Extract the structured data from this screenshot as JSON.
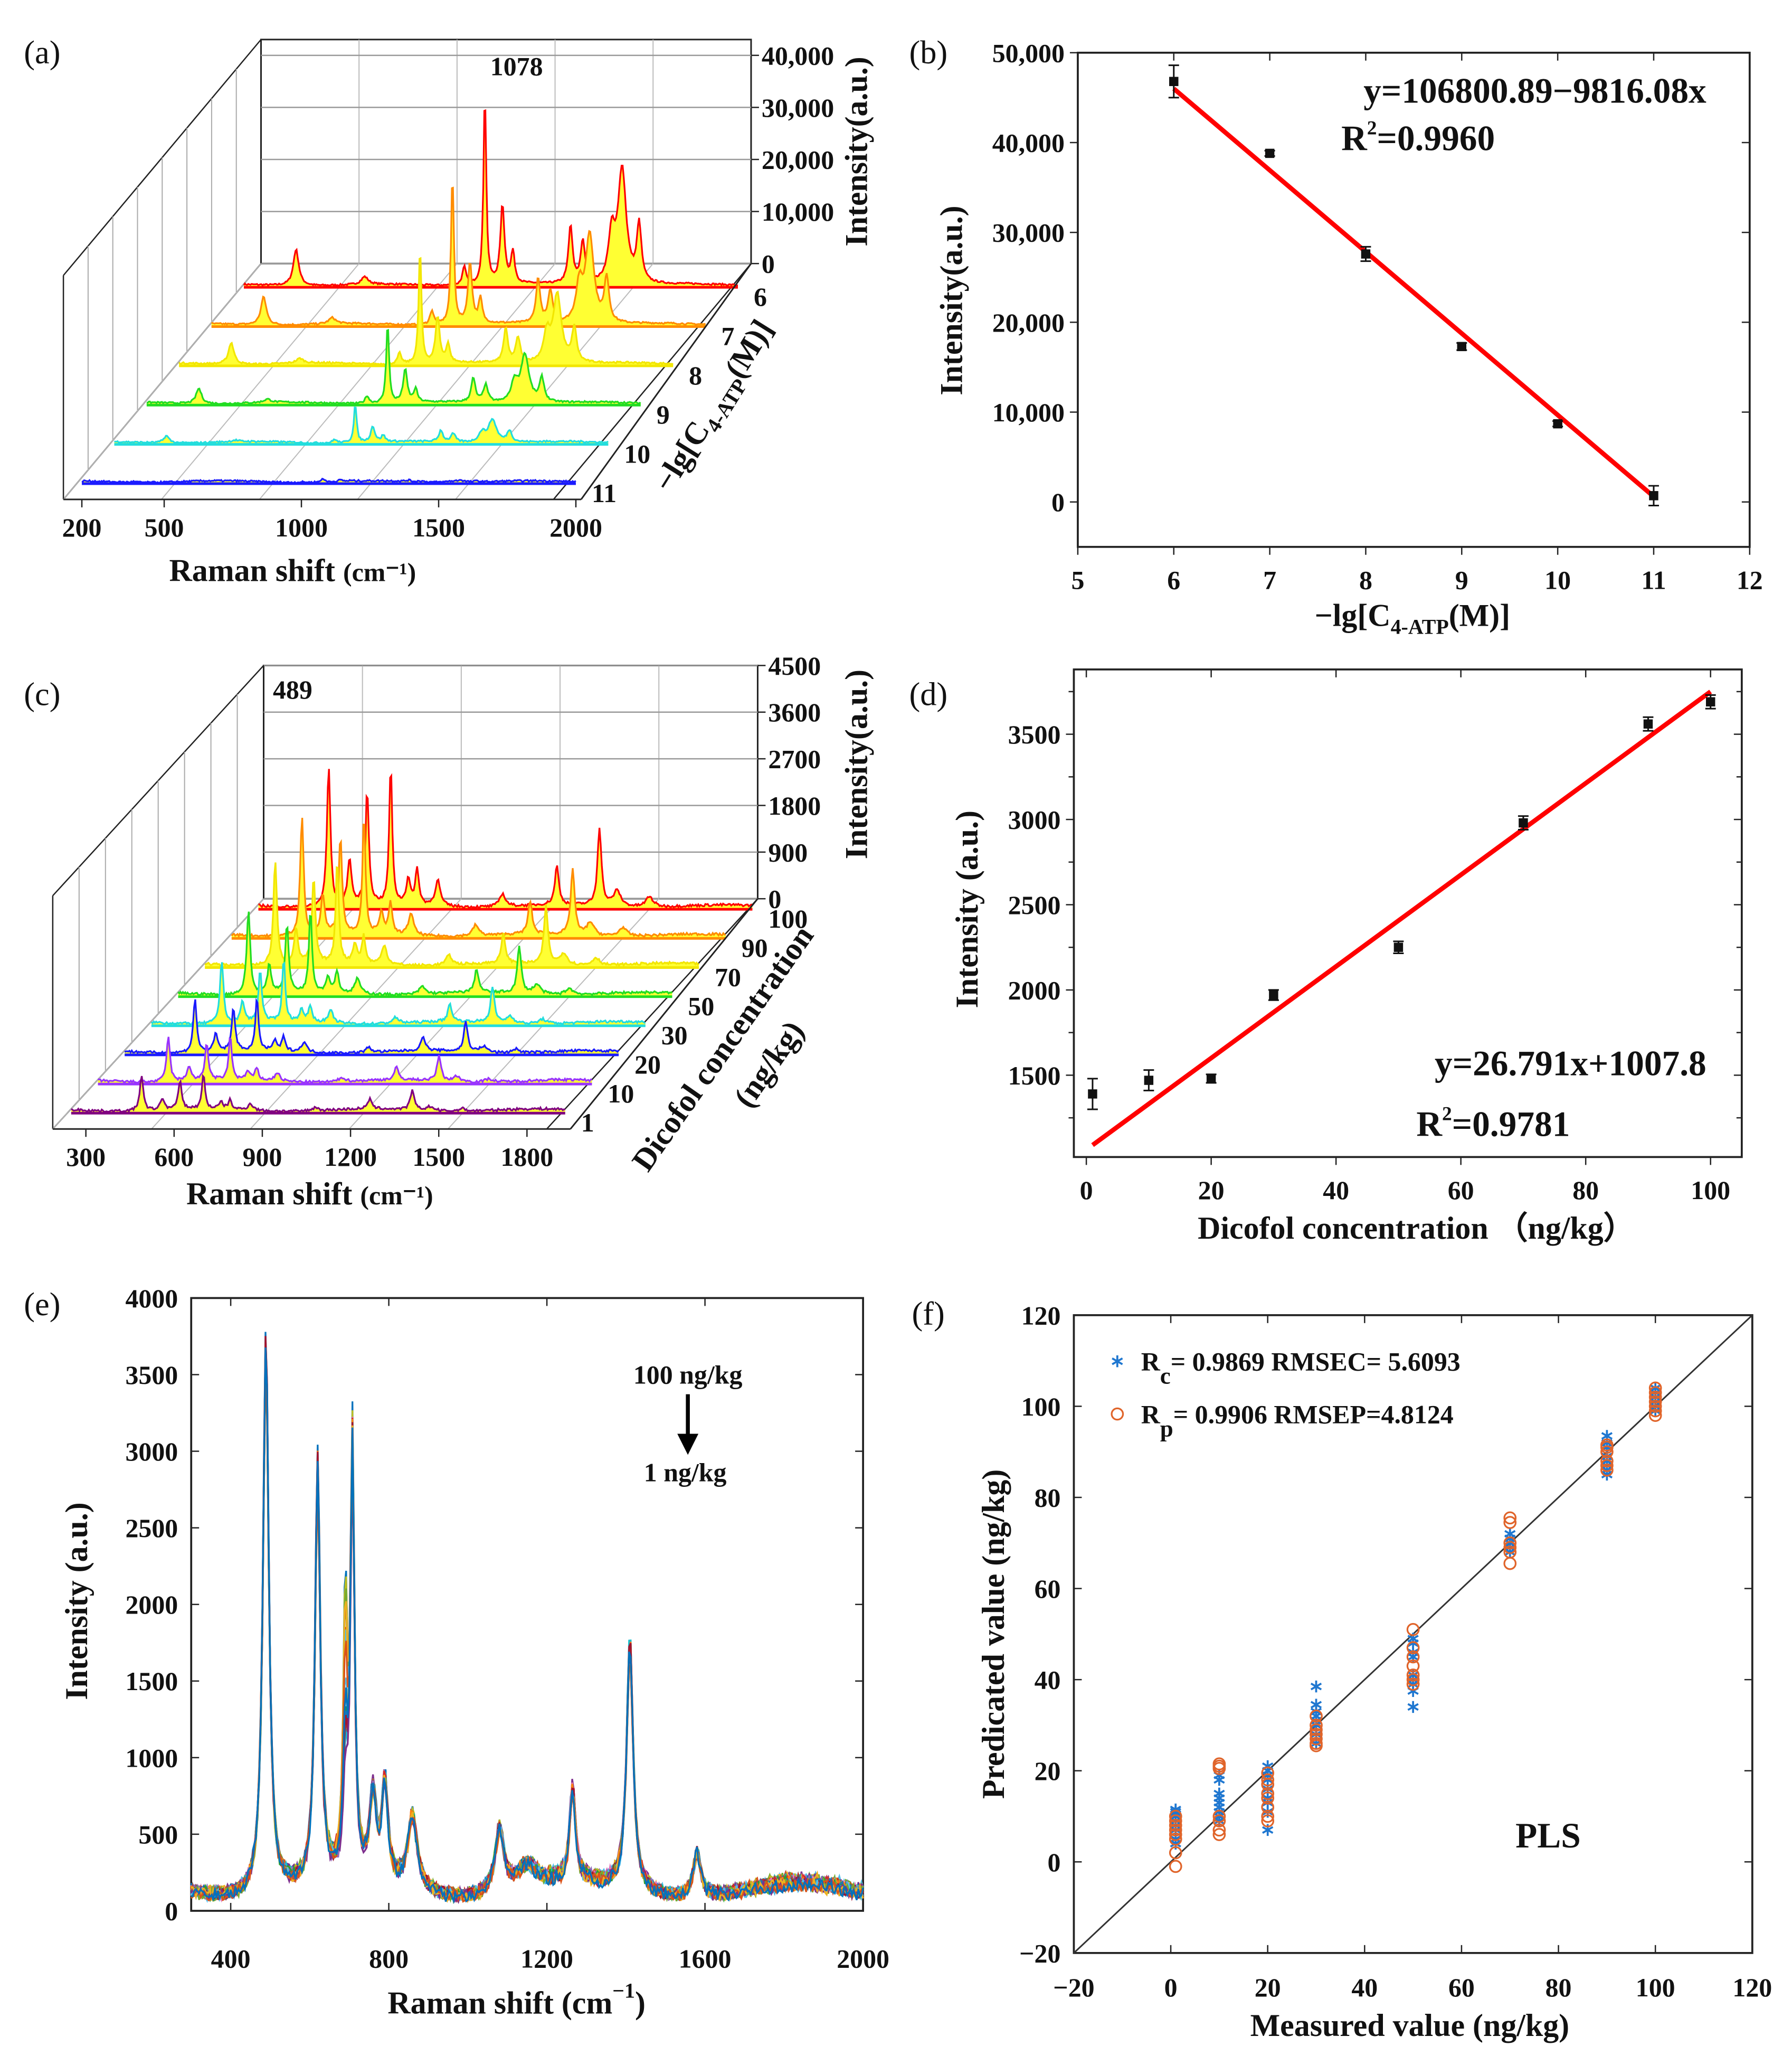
{
  "chart_data": [
    {
      "panel_label": "(a)",
      "type": "line",
      "subtype": "3d-waterfall",
      "xlabel": "Raman shift",
      "xlabel_unit": "(cm⁻¹)",
      "xlim": [
        200,
        2000
      ],
      "x_ticks": [
        200,
        500,
        1000,
        1500,
        2000
      ],
      "zlabel": "Intensity(a.u.)",
      "zlim": [
        0,
        42000
      ],
      "z_ticks": [
        0,
        10000,
        20000,
        30000,
        40000
      ],
      "z_tick_labels": [
        "0",
        "10,000",
        "20,000",
        "30,000",
        "40,000"
      ],
      "ylabel_parts": [
        "−lg[C",
        "4-ATP",
        "(M)]"
      ],
      "annotation": {
        "text": "1078",
        "x": 1078
      },
      "baseline": 400,
      "peaks": [
        [
          390,
          7000,
          12
        ],
        [
          640,
          1500,
          15
        ],
        [
          1003,
          3500,
          8
        ],
        [
          1078,
          37000,
          6
        ],
        [
          1142,
          15000,
          9
        ],
        [
          1180,
          6000,
          8
        ],
        [
          1390,
          11000,
          9
        ],
        [
          1435,
          8000,
          10
        ],
        [
          1540,
          9000,
          14
        ],
        [
          1578,
          22000,
          18
        ],
        [
          1640,
          11000,
          10
        ]
      ],
      "fill_color": "#ffff33",
      "series": [
        {
          "name": "6",
          "color": "#ff0000",
          "scale": 1.0
        },
        {
          "name": "7",
          "color": "#ff8c00",
          "scale": 0.78
        },
        {
          "name": "8",
          "color": "#f2e600",
          "scale": 0.6
        },
        {
          "name": "9",
          "color": "#22dd22",
          "scale": 0.42
        },
        {
          "name": "10",
          "color": "#22dddd",
          "scale": 0.2
        },
        {
          "name": "11",
          "color": "#1a1aff",
          "scale": 0.02
        }
      ]
    },
    {
      "panel_label": "(b)",
      "type": "scatter",
      "x": [
        6,
        7,
        8,
        9,
        10,
        11
      ],
      "y": [
        46800,
        38800,
        27600,
        17300,
        8700,
        700
      ],
      "yerr": [
        1800,
        300,
        800,
        400,
        300,
        1100
      ],
      "fit_line": {
        "x": [
          6,
          11
        ],
        "y": [
          46000,
          600
        ],
        "color": "#ff0000"
      },
      "equation": "y=106800.89−9816.08x",
      "r2": {
        "label": "R",
        "sup": "2",
        "value": "=0.9960"
      },
      "xlim": [
        5,
        12
      ],
      "ylim": [
        -5000,
        50000
      ],
      "x_ticks": [
        5,
        6,
        7,
        8,
        9,
        10,
        11,
        12
      ],
      "y_ticks": [
        0,
        10000,
        20000,
        30000,
        40000,
        50000
      ],
      "y_tick_labels": [
        "0",
        "10,000",
        "20,000",
        "30,000",
        "40,000",
        "50,000"
      ],
      "ylabel": "Intensity(a.u.)",
      "xlabel_parts": [
        "−lg[C",
        "4-ATP",
        "(M)]"
      ]
    },
    {
      "panel_label": "(c)",
      "type": "line",
      "subtype": "3d-waterfall",
      "xlabel": "Raman shift",
      "xlabel_unit": "(cm⁻¹)",
      "xlim": [
        250,
        1930
      ],
      "x_ticks": [
        300,
        600,
        900,
        1200,
        1500,
        1800
      ],
      "zlabel": "Intensity(a.u.)",
      "zlim": [
        0,
        4500
      ],
      "z_ticks": [
        0,
        900,
        1800,
        2700,
        3600,
        4500
      ],
      "z_tick_labels": [
        "0",
        "900",
        "1800",
        "2700",
        "3600",
        "4500"
      ],
      "ylabel": "Dicofol concentration",
      "ylabel_unit": "(ng/kg)",
      "annotation": {
        "text": "489"
      },
      "baseline": 60,
      "peaks": [
        [
          489,
          2700,
          7
        ],
        [
          560,
          900,
          8
        ],
        [
          620,
          2200,
          7
        ],
        [
          700,
          2700,
          6
        ],
        [
          760,
          500,
          8
        ],
        [
          790,
          700,
          7
        ],
        [
          860,
          500,
          10
        ],
        [
          1080,
          250,
          12
        ],
        [
          1265,
          750,
          8
        ],
        [
          1410,
          1500,
          8
        ],
        [
          1470,
          300,
          15
        ],
        [
          1580,
          200,
          15
        ]
      ],
      "fill_color": "#ffff33",
      "series": [
        {
          "name": "100",
          "color": "#ff0000",
          "scale": 1.0
        },
        {
          "name": "90",
          "color": "#ff8c00",
          "scale": 0.85
        },
        {
          "name": "70",
          "color": "#f2e600",
          "scale": 0.75
        },
        {
          "name": "50",
          "color": "#22dd22",
          "scale": 0.6
        },
        {
          "name": "30",
          "color": "#22dddd",
          "scale": 0.45
        },
        {
          "name": "20",
          "color": "#1a1aff",
          "scale": 0.38
        },
        {
          "name": "10",
          "color": "#9933ff",
          "scale": 0.32
        },
        {
          "name": "1",
          "color": "#800080",
          "scale": 0.25
        }
      ]
    },
    {
      "panel_label": "(d)",
      "type": "scatter",
      "x": [
        1,
        10,
        20,
        30,
        50,
        70,
        90,
        100
      ],
      "y": [
        1390,
        1470,
        1480,
        1970,
        2250,
        2980,
        3560,
        3690
      ],
      "yerr": [
        90,
        60,
        25,
        30,
        35,
        40,
        40,
        40
      ],
      "fit_line": {
        "x": [
          1,
          100
        ],
        "y": [
          1090,
          3750
        ],
        "color": "#ff0000"
      },
      "equation": "y=26.791x+1007.8",
      "r2": {
        "label": "R",
        "sup": "2",
        "value": "=0.9781"
      },
      "xlim": [
        -2,
        105
      ],
      "ylim": [
        1020,
        3880
      ],
      "x_ticks": [
        0,
        20,
        40,
        60,
        80,
        100
      ],
      "y_ticks": [
        1500,
        2000,
        2500,
        3000,
        3500
      ],
      "ylabel": "Intensity (a.u.)",
      "xlabel": "Dicofol concentration （ng/kg）"
    },
    {
      "panel_label": "(e)",
      "type": "line",
      "xlim": [
        300,
        2000
      ],
      "ylim": [
        0,
        4000
      ],
      "x_ticks": [
        400,
        800,
        1200,
        1600,
        2000
      ],
      "y_ticks": [
        0,
        500,
        1000,
        1500,
        2000,
        2500,
        3000,
        3500,
        4000
      ],
      "xlabel": "Raman shift (cm",
      "xlabel_sup": "−1",
      "xlabel_end": ")",
      "ylabel": "Intensity (a.u.)",
      "annotation_top": "100 ng/kg",
      "annotation_bottom": "1 ng/kg",
      "series_count": 22,
      "baseline": 150,
      "peaks": [
        [
          489,
          3700,
          9
        ],
        [
          620,
          2800,
          8
        ],
        [
          690,
          1500,
          6
        ],
        [
          708,
          2900,
          6
        ],
        [
          760,
          550,
          10
        ],
        [
          790,
          650,
          9
        ],
        [
          860,
          500,
          14
        ],
        [
          1080,
          420,
          14
        ],
        [
          1150,
          150,
          30
        ],
        [
          1265,
          620,
          9
        ],
        [
          1410,
          1650,
          10
        ],
        [
          1580,
          300,
          12
        ]
      ],
      "colors": [
        "#0072bd",
        "#d95319",
        "#edb120",
        "#7e2f8e",
        "#77ac30",
        "#4dbeee",
        "#a2142f",
        "#1f77b4",
        "#ff7f0e",
        "#2ca02c",
        "#d62728",
        "#9467bd",
        "#8c564b",
        "#e377c2",
        "#17becf",
        "#bcbd22"
      ]
    },
    {
      "panel_label": "(f)",
      "type": "scatter",
      "xlim": [
        -20,
        120
      ],
      "ylim": [
        -20,
        120
      ],
      "x_ticks": [
        -20,
        0,
        20,
        40,
        60,
        80,
        100,
        120
      ],
      "y_ticks": [
        -20,
        0,
        20,
        40,
        60,
        80,
        100,
        120
      ],
      "x_tick_labels": [
        "−20",
        "0",
        "20",
        "40",
        "60",
        "80",
        "100",
        "120"
      ],
      "y_tick_labels": [
        "−20",
        "0",
        "20",
        "40",
        "60",
        "80",
        "100",
        "120"
      ],
      "xlabel": "Measured value (ng/kg)",
      "ylabel": "Predicated value (ng/kg)",
      "annotation": "PLS",
      "reference_line": {
        "x": [
          -20,
          120
        ],
        "y": [
          -20,
          120
        ]
      },
      "series": [
        {
          "name": "calibration",
          "marker": "asterisk",
          "color": "#1f77d0",
          "legend": {
            "main": "R",
            "sub": "c",
            "rest": "= 0.9869 RMSEC= 5.6093"
          },
          "points": [
            [
              1,
              [
                4,
                5,
                7,
                8,
                9,
                10,
                10.5,
                11,
                11.5
              ]
            ],
            [
              10,
              [
                9,
                10,
                11,
                12,
                13,
                14,
                15,
                18,
                19
              ]
            ],
            [
              20,
              [
                7,
                11,
                13,
                14,
                16,
                18,
                19,
                20,
                21
              ]
            ],
            [
              30,
              [
                26,
                28,
                30,
                31,
                32,
                33,
                34.5,
                38.5
              ]
            ],
            [
              50,
              [
                34,
                37.5,
                39,
                40,
                41,
                45,
                46,
                48,
                49
              ]
            ],
            [
              70,
              [
                68,
                69,
                70,
                71,
                72
              ]
            ],
            [
              90,
              [
                85,
                86,
                87,
                88,
                89,
                91,
                92,
                93.5
              ]
            ],
            [
              100,
              [
                99,
                100,
                101,
                102,
                103,
                104
              ]
            ]
          ]
        },
        {
          "name": "prediction",
          "marker": "circle",
          "color": "#e0642a",
          "legend": {
            "main": "R",
            "sub": "p",
            "rest": "= 0.9906  RMSEP=4.8124"
          },
          "points": [
            [
              1,
              [
                -1,
                2,
                5,
                6,
                7,
                8,
                9,
                10
              ]
            ],
            [
              10,
              [
                6,
                7,
                9,
                10,
                20.5,
                21,
                21.5
              ]
            ],
            [
              20,
              [
                9,
                10,
                12,
                14,
                15,
                17,
                18,
                19.5
              ]
            ],
            [
              30,
              [
                25.5,
                26,
                27,
                28,
                29,
                30,
                32
              ]
            ],
            [
              50,
              [
                39,
                40,
                41,
                43,
                45,
                47,
                51
              ]
            ],
            [
              70,
              [
                65.5,
                68,
                69,
                70,
                74.5,
                75.5
              ]
            ],
            [
              90,
              [
                86,
                87,
                88,
                90,
                91,
                91.5
              ]
            ],
            [
              100,
              [
                98,
                99,
                100,
                101,
                102,
                103,
                104
              ]
            ]
          ]
        }
      ]
    }
  ]
}
